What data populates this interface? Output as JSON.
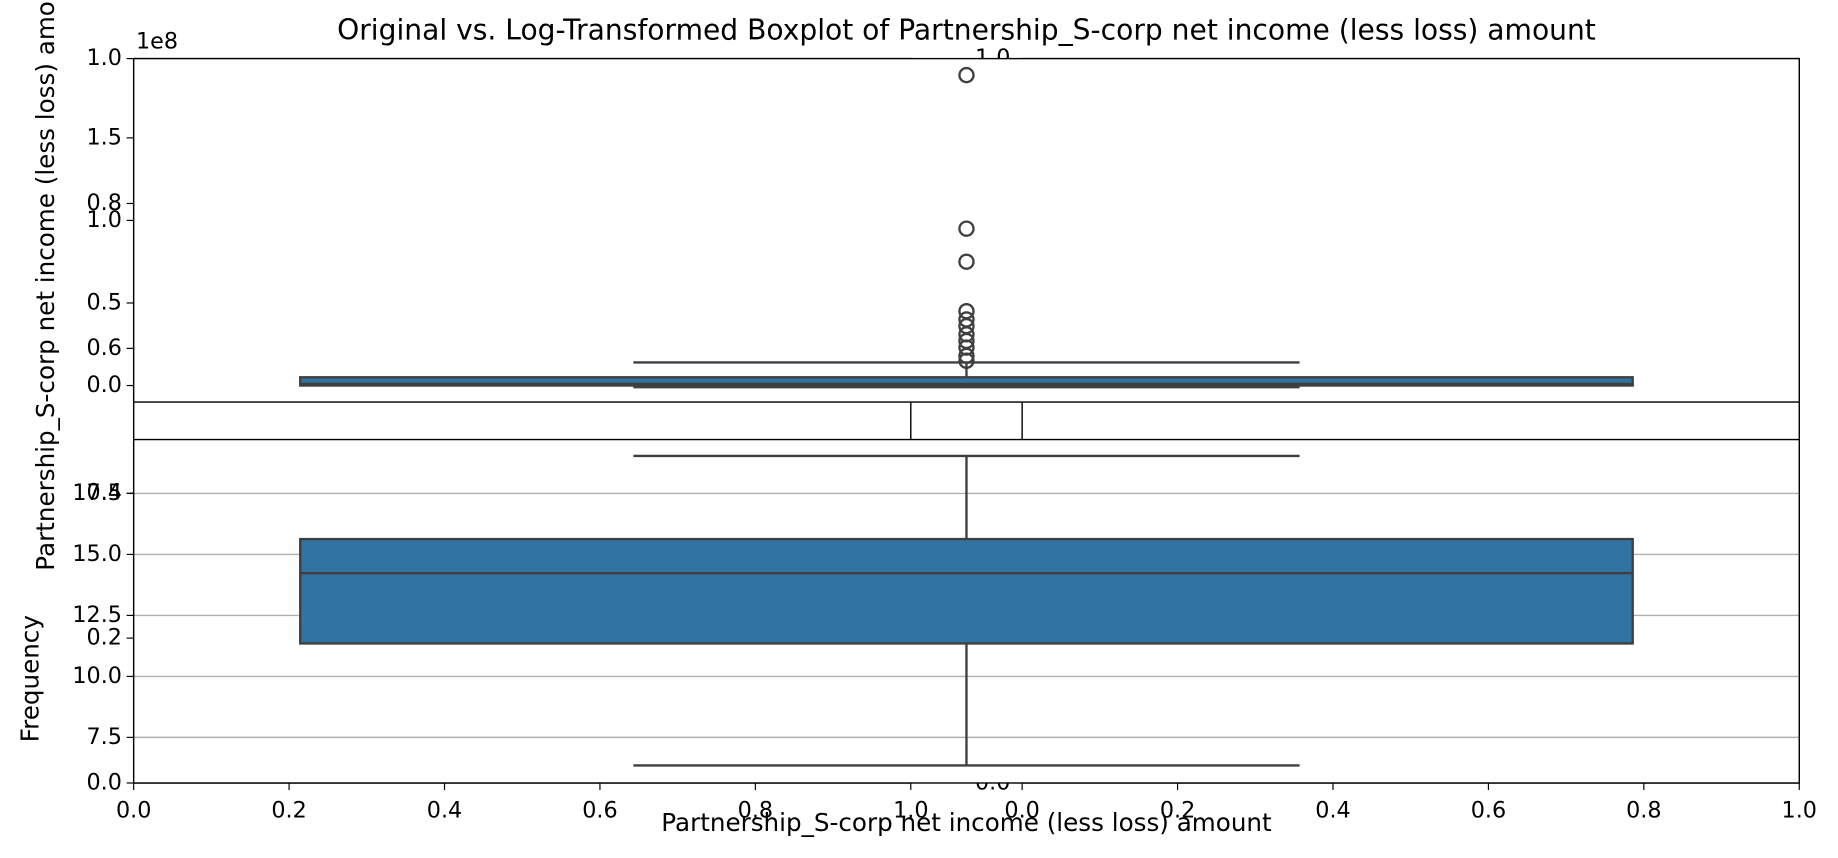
{
  "chart_data": [
    {
      "type": "frame",
      "ylabel": "Frequency",
      "xlim": [
        0,
        1
      ],
      "ylim": [
        0,
        1
      ],
      "xticks": [
        {
          "value": 0,
          "label": "0.0"
        },
        {
          "value": 0.2,
          "label": "0.2"
        },
        {
          "value": 0.4,
          "label": "0.4"
        },
        {
          "value": 0.6,
          "label": "0.6"
        },
        {
          "value": 0.8,
          "label": "0.8"
        },
        {
          "value": 1,
          "label": "1.0"
        }
      ],
      "yticks": [
        {
          "value": 0,
          "label": "0.0"
        },
        {
          "value": 0.2,
          "label": "0.2"
        },
        {
          "value": 0.4,
          "label": "0.4"
        },
        {
          "value": 0.6,
          "label": "0.6"
        },
        {
          "value": 0.8,
          "label": "0.8"
        },
        {
          "value": 1,
          "label": "1.0"
        }
      ]
    },
    {
      "type": "frame",
      "xlim": [
        0,
        1
      ],
      "ylim": [
        0,
        1
      ],
      "xticks": [
        {
          "value": 0,
          "label": "0.0"
        },
        {
          "value": 0.2,
          "label": "0.2"
        },
        {
          "value": 0.4,
          "label": "0.4"
        },
        {
          "value": 0.6,
          "label": "0.6"
        },
        {
          "value": 0.8,
          "label": "0.8"
        },
        {
          "value": 1,
          "label": "1.0"
        }
      ],
      "yticks": [
        {
          "value": 0,
          "label": "0.0"
        },
        {
          "value": 1,
          "label": "1.0"
        }
      ]
    },
    {
      "type": "box",
      "title": "Original vs. Log-Transformed Boxplot of Partnership_S-corp net income (less loss) amount",
      "ylabel": "Partnership_S-corp net income (less loss) amount",
      "offset_label": "1e8",
      "ylim": [
        -0.1,
        1.98
      ],
      "yticks": [
        {
          "value": 0,
          "label": "0.0"
        },
        {
          "value": 0.5,
          "label": "0.5"
        },
        {
          "value": 1,
          "label": "1.0"
        },
        {
          "value": 1.5,
          "label": "1.5"
        }
      ],
      "color": "#3274a1",
      "grid": false,
      "whislo": -0.01,
      "q1": 0.0,
      "median": 0.01,
      "q3": 0.05,
      "whishi": 0.14,
      "fliers": [
        1.88,
        0.95,
        0.75,
        0.45,
        0.4,
        0.36,
        0.31,
        0.27,
        0.23,
        0.18,
        0.15
      ]
    },
    {
      "type": "box",
      "xlabel": "Partnership_S-corp net income (less loss) amount",
      "ylim": [
        5.63,
        19.71
      ],
      "yticks": [
        7.5,
        {
          "value": 10,
          "label": "10.0"
        },
        12.5,
        {
          "value": 15,
          "label": "15.0"
        },
        17.5
      ],
      "color": "#3274a1",
      "grid": true,
      "whislo": 6.35,
      "q1": 11.35,
      "median": 14.23,
      "q3": 15.63,
      "whishi": 19.04,
      "fliers": []
    }
  ]
}
